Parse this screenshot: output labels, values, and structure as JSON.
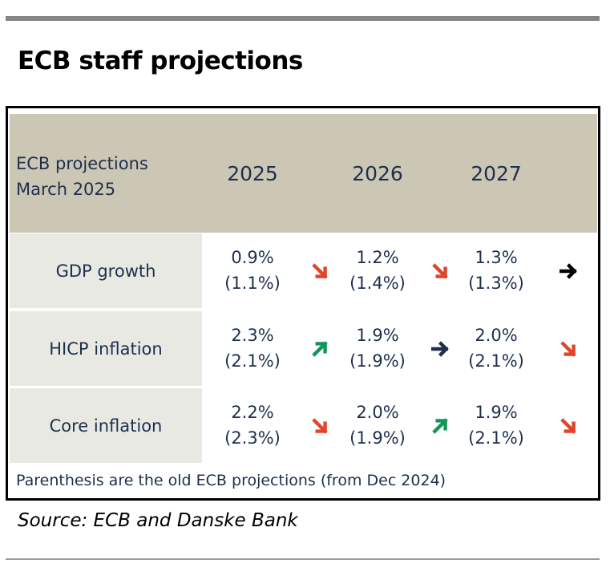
{
  "title": "ECB staff projections",
  "chart_data": {
    "type": "table",
    "corner_label": [
      "ECB projections",
      "March 2025"
    ],
    "columns": [
      "2025",
      "2026",
      "2027"
    ],
    "rows": [
      {
        "label": "GDP growth",
        "cells": [
          {
            "new": "0.9%",
            "old": "(1.1%)",
            "trend": "down"
          },
          {
            "new": "1.2%",
            "old": "(1.4%)",
            "trend": "down"
          },
          {
            "new": "1.3%",
            "old": "(1.3%)",
            "trend": "flat"
          }
        ]
      },
      {
        "label": "HICP inflation",
        "cells": [
          {
            "new": "2.3%",
            "old": "(2.1%)",
            "trend": "up"
          },
          {
            "new": "1.9%",
            "old": "(1.9%)",
            "trend": "flat"
          },
          {
            "new": "2.0%",
            "old": "(2.1%)",
            "trend": "down"
          }
        ]
      },
      {
        "label": "Core inflation",
        "cells": [
          {
            "new": "2.2%",
            "old": "(2.3%)",
            "trend": "down"
          },
          {
            "new": "2.0%",
            "old": "(1.9%)",
            "trend": "up"
          },
          {
            "new": "1.9%",
            "old": "(2.1%)",
            "trend": "down"
          }
        ]
      }
    ],
    "note": "Parenthesis are the old ECB projections (from Dec 2024)",
    "colors": {
      "header": "#ccc6b5",
      "label_cell": "#e9e9e4",
      "text": "#1e2f4c",
      "down": "#e0452a",
      "up": "#14945a",
      "flat_row1": "#000000",
      "flat_row2": "#1e2f4c"
    }
  },
  "source": "Source: ECB and Danske Bank"
}
